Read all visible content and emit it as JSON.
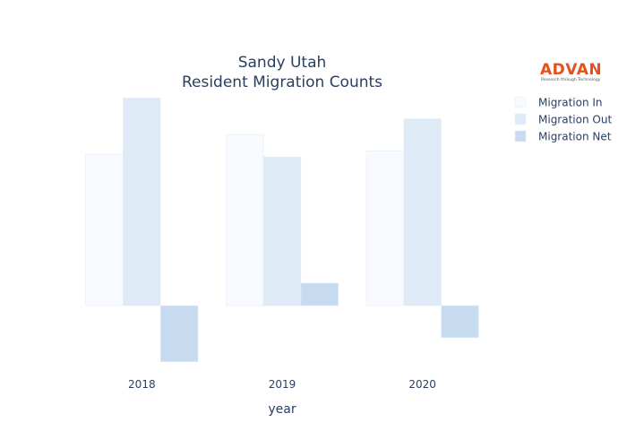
{
  "logo": {
    "name": "ADVAN",
    "tagline": "Research through Technology",
    "color": "#e8501b"
  },
  "chart_data": {
    "type": "bar",
    "title_lines": [
      "Sandy Utah",
      "Resident Migration Counts"
    ],
    "xlabel": "year",
    "ylabel": "",
    "categories": [
      "2018",
      "2019",
      "2020"
    ],
    "series": [
      {
        "name": "Migration In",
        "color": "#f7fbff",
        "values": [
          2700,
          3050,
          2760
        ]
      },
      {
        "name": "Migration Out",
        "color": "#deebf7",
        "values": [
          3700,
          2650,
          3330
        ]
      },
      {
        "name": "Migration Net",
        "color": "#c6dbef",
        "values": [
          -1000,
          400,
          -570
        ]
      }
    ],
    "ylim": [
      -1100,
      3850
    ],
    "y_ticks_visible": false,
    "grid": false,
    "legend_position": "top-right"
  }
}
